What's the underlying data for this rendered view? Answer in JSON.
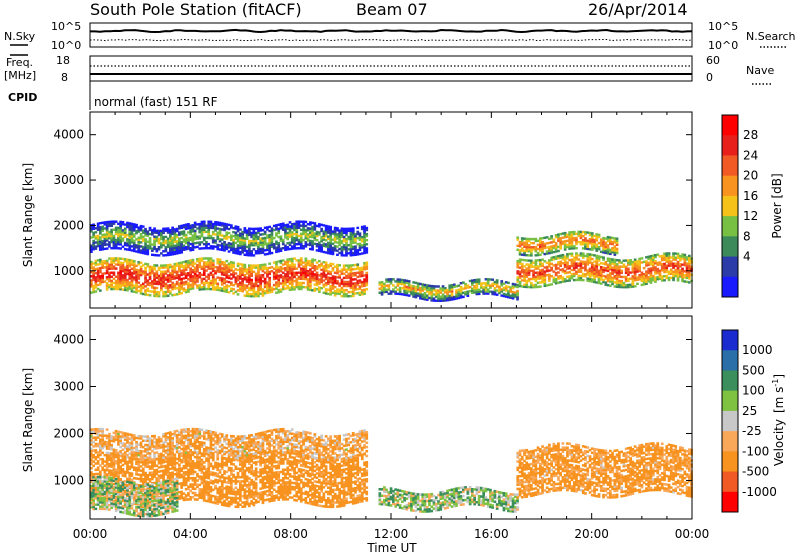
{
  "header": {
    "station": "South Pole Station (fitACF)",
    "beam": "Beam 07",
    "date": "26/Apr/2014"
  },
  "noise_panel": {
    "left_label": "N.Sky",
    "left_ticks": [
      "10^5",
      "10^0"
    ],
    "right_label": "N.Search",
    "right_ticks": [
      "10^5",
      "10^0"
    ]
  },
  "freq_panel": {
    "left_label_1": "Freq.",
    "left_label_2": "[MHz]",
    "left_ticks": [
      "18",
      "8"
    ],
    "cpid_label": "CPID",
    "right_label": "Nave",
    "right_ticks": [
      "60",
      "0"
    ],
    "cpid_text": "normal (fast) 151 RF"
  },
  "colors": {
    "power_scale": [
      "#1a1aff",
      "#2b3ba8",
      "#3c8a5a",
      "#77c043",
      "#f5c21a",
      "#f7931e",
      "#f15a24",
      "#e8201c",
      "#ff0000"
    ],
    "velocity_scale": [
      "#ff0000",
      "#f15a24",
      "#f7931e",
      "#f9a85a",
      "#c8c8c8",
      "#7fc241",
      "#3a8f5c",
      "#2a6fa8",
      "#1a2bd0"
    ]
  },
  "time_axis": {
    "ticks": [
      "00:00",
      "04:00",
      "08:00",
      "12:00",
      "16:00",
      "20:00",
      "00:00"
    ],
    "label": "Time UT"
  },
  "power_colorbar": {
    "label": "Power [dB]",
    "ticks": [
      "28",
      "24",
      "20",
      "16",
      "12",
      "8",
      "4"
    ]
  },
  "velocity_colorbar": {
    "label": "Velocity",
    "label_units": "[m s",
    "label_exp": "-1",
    "label_close": "]",
    "ticks": [
      "1000",
      "500",
      "100",
      "25",
      "-25",
      "-100",
      "-500",
      "-1000"
    ]
  },
  "chart_data": [
    {
      "type": "heatmap",
      "title": "",
      "xlabel": "",
      "ylabel": "Slant Range [km]",
      "xlim": [
        0,
        24
      ],
      "ylim": [
        180,
        4500
      ],
      "y_ticks": [
        "1000",
        "2000",
        "3000",
        "4000"
      ],
      "y_tick_values": [
        1000,
        2000,
        3000,
        4000
      ],
      "colorbar": "Power [dB]",
      "bands": [
        {
          "name": "main",
          "t_start": 0.0,
          "t_end": 11.0,
          "r_low": 500,
          "r_high": 1200,
          "db": 26
        },
        {
          "name": "upper",
          "t_start": 0.0,
          "t_end": 11.0,
          "r_low": 1400,
          "r_high": 2000,
          "db": 14
        },
        {
          "name": "noon",
          "t_start": 11.5,
          "t_end": 17.0,
          "r_low": 400,
          "r_high": 750,
          "db": 18
        },
        {
          "name": "evening-main",
          "t_start": 17.0,
          "t_end": 24.0,
          "r_low": 700,
          "r_high": 1300,
          "db": 24
        },
        {
          "name": "evening-upper",
          "t_start": 17.0,
          "t_end": 21.0,
          "r_low": 1400,
          "r_high": 1800,
          "db": 22
        }
      ]
    },
    {
      "type": "heatmap",
      "title": "",
      "xlabel": "Time UT",
      "ylabel": "Slant Range [km]",
      "xlim": [
        0,
        24
      ],
      "ylim": [
        180,
        4500
      ],
      "y_ticks": [
        "1000",
        "2000",
        "3000",
        "4000"
      ],
      "y_tick_values": [
        1000,
        2000,
        3000,
        4000
      ],
      "colorbar": "Velocity [m s-1]",
      "bands": [
        {
          "name": "main",
          "t_start": 0.0,
          "t_end": 11.0,
          "r_low": 500,
          "r_high": 1500,
          "v": -200
        },
        {
          "name": "near",
          "t_start": 0.0,
          "t_end": 3.5,
          "r_low": 300,
          "r_high": 1000,
          "v": 50
        },
        {
          "name": "upper",
          "t_start": 0.0,
          "t_end": 11.0,
          "r_low": 1500,
          "r_high": 2000,
          "v": -100
        },
        {
          "name": "noon",
          "t_start": 11.5,
          "t_end": 17.0,
          "r_low": 400,
          "r_high": 800,
          "v": 60
        },
        {
          "name": "evening",
          "t_start": 17.0,
          "t_end": 24.0,
          "r_low": 700,
          "r_high": 1700,
          "v": -150
        }
      ]
    }
  ]
}
